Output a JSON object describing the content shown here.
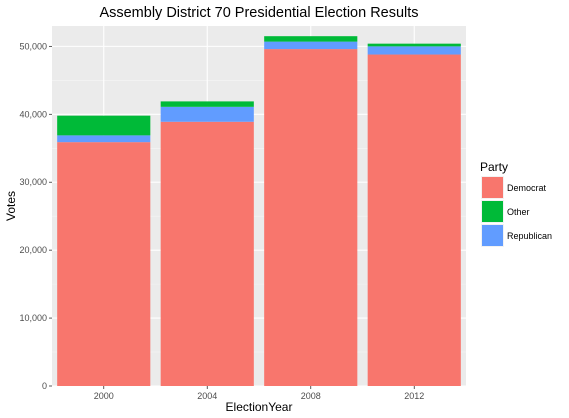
{
  "chart_data": {
    "type": "bar",
    "stacked": true,
    "title": "Assembly District 70 Presidential Election Results",
    "xlabel": "ElectionYear",
    "ylabel": "Votes",
    "categories": [
      "2000",
      "2004",
      "2008",
      "2012"
    ],
    "ylim": [
      0,
      53000
    ],
    "yticks": [
      0,
      10000,
      20000,
      30000,
      40000,
      50000
    ],
    "ytick_labels": [
      "0",
      "10,000",
      "20,000",
      "30,000",
      "40,000",
      "50,000"
    ],
    "grid": true,
    "legend_title": "Party",
    "legend_position": "right",
    "series": [
      {
        "name": "Democrat",
        "color": "#F8766D",
        "values": [
          35900,
          38900,
          49600,
          48800
        ]
      },
      {
        "name": "Republican",
        "color": "#619CFF",
        "values": [
          1000,
          2200,
          1100,
          1200
        ]
      },
      {
        "name": "Other",
        "color": "#00BA38",
        "values": [
          2900,
          800,
          800,
          400
        ]
      }
    ],
    "legend_order": [
      "Democrat",
      "Other",
      "Republican"
    ]
  }
}
